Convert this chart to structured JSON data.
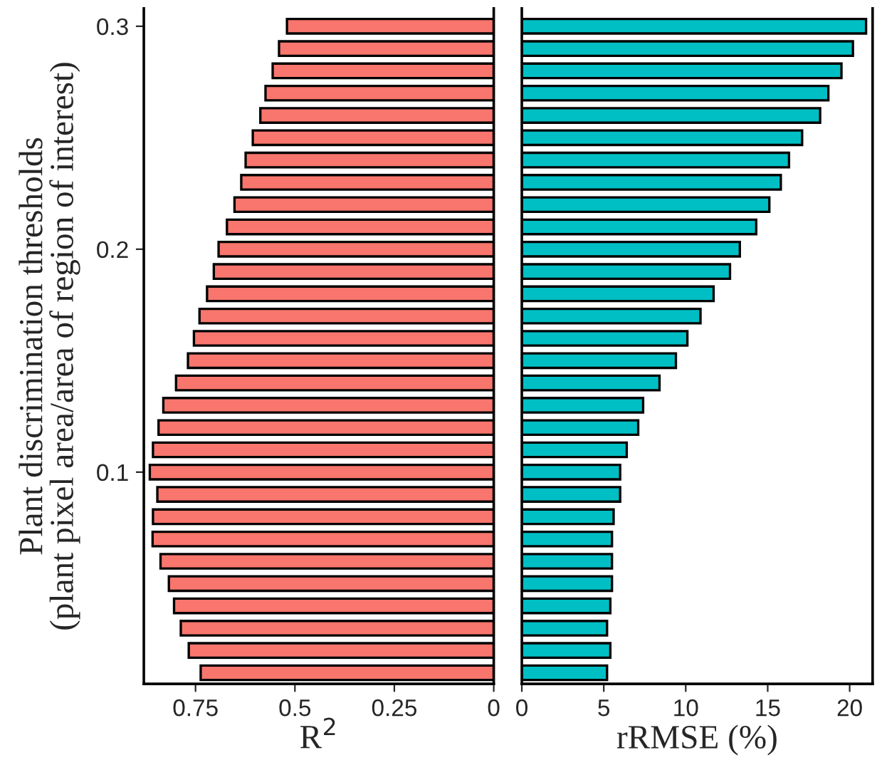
{
  "chart_data": [
    {
      "type": "bar",
      "orientation": "horizontal",
      "xlabel": "R$^{2}$",
      "ylabel": "Plant discrimination thresholds\n(plant pixel area/area of region of interest)",
      "x": [
        0.3,
        0.29,
        0.28,
        0.27,
        0.26,
        0.25,
        0.24,
        0.23,
        0.22,
        0.21,
        0.2,
        0.19,
        0.18,
        0.17,
        0.16,
        0.15,
        0.14,
        0.13,
        0.12,
        0.11,
        0.1,
        0.09,
        0.08,
        0.07,
        0.06,
        0.05,
        0.04,
        0.03,
        0.02,
        0.01
      ],
      "values": [
        0.52,
        0.54,
        0.556,
        0.574,
        0.587,
        0.606,
        0.624,
        0.635,
        0.652,
        0.671,
        0.692,
        0.704,
        0.721,
        0.74,
        0.754,
        0.769,
        0.799,
        0.831,
        0.843,
        0.857,
        0.865,
        0.846,
        0.857,
        0.858,
        0.838,
        0.817,
        0.804,
        0.787,
        0.767,
        0.737
      ],
      "color": "#f8766d",
      "xlim": [
        0.88,
        0
      ],
      "xticks": [
        0.75,
        0.5,
        0.25,
        0
      ],
      "ylim": [
        0.005,
        0.308
      ],
      "yticks": [
        0.1,
        0.2,
        0.3
      ],
      "grid": false
    },
    {
      "type": "bar",
      "orientation": "horizontal",
      "xlabel": "rRMSE (%)",
      "x": [
        0.3,
        0.29,
        0.28,
        0.27,
        0.26,
        0.25,
        0.24,
        0.23,
        0.22,
        0.21,
        0.2,
        0.19,
        0.18,
        0.17,
        0.16,
        0.15,
        0.14,
        0.13,
        0.12,
        0.11,
        0.1,
        0.09,
        0.08,
        0.07,
        0.06,
        0.05,
        0.04,
        0.03,
        0.02,
        0.01
      ],
      "values": [
        21.0,
        20.2,
        19.5,
        18.7,
        18.2,
        17.1,
        16.3,
        15.8,
        15.1,
        14.3,
        13.3,
        12.7,
        11.7,
        10.9,
        10.1,
        9.4,
        8.4,
        7.4,
        7.1,
        6.4,
        6.0,
        6.0,
        5.6,
        5.5,
        5.5,
        5.5,
        5.4,
        5.2,
        5.4,
        5.2
      ],
      "color": "#00bfc4",
      "xlim": [
        0,
        21.4
      ],
      "xticks": [
        0,
        5,
        10,
        15,
        20
      ],
      "ylim": [
        0.005,
        0.308
      ],
      "yticks": [
        0.1,
        0.2,
        0.3
      ],
      "tick_labels": "x",
      "grid": false
    }
  ]
}
